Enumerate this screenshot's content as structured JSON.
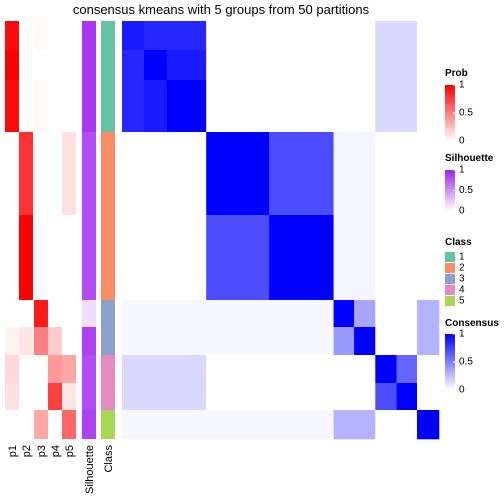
{
  "chart_data": {
    "type": "heatmap",
    "title": "consensus kmeans with 5 groups from 50 partitions",
    "annotations": [
      {
        "name": "p1",
        "scale": "prob",
        "values": [
          0.95,
          1,
          0.97,
          0,
          0,
          0,
          0.05,
          0.15,
          0.12,
          0
        ]
      },
      {
        "name": "p2",
        "scale": "prob",
        "values": [
          0,
          0,
          0,
          0.8,
          1,
          0,
          0.1,
          0,
          0,
          0
        ]
      },
      {
        "name": "p3",
        "scale": "prob",
        "values": [
          0.02,
          0,
          0.02,
          0,
          0,
          0.9,
          0.5,
          0,
          0,
          0.35
        ]
      },
      {
        "name": "p4",
        "scale": "prob",
        "values": [
          0,
          0,
          0,
          0,
          0,
          0,
          0.2,
          0.4,
          0.75,
          0
        ]
      },
      {
        "name": "p5",
        "scale": "prob",
        "values": [
          0,
          0,
          0,
          0.12,
          0,
          0,
          0,
          0.35,
          0.1,
          0.6
        ]
      },
      {
        "name": "Silhouette",
        "scale": "silhouette",
        "values": [
          0.9,
          0.9,
          0.9,
          0.8,
          0.8,
          0.15,
          0.85,
          0.8,
          0.8,
          0.85
        ]
      },
      {
        "name": "Class",
        "scale": "class",
        "values": [
          1,
          1,
          1,
          2,
          2,
          3,
          3,
          4,
          4,
          5
        ]
      }
    ],
    "values": [
      [
        0.9,
        0.85,
        0.85,
        0,
        0,
        0,
        0,
        0.15,
        0.15,
        0
      ],
      [
        0.85,
        1,
        0.9,
        0,
        0,
        0,
        0,
        0.15,
        0.15,
        0
      ],
      [
        0.85,
        0.9,
        1,
        0,
        0,
        0,
        0,
        0.15,
        0.15,
        0
      ],
      [
        0,
        0,
        0,
        1,
        0.7,
        0.04,
        0.04,
        0,
        0,
        0
      ],
      [
        0,
        0,
        0,
        0.7,
        1,
        0.04,
        0.04,
        0,
        0,
        0
      ],
      [
        0.03,
        0.03,
        0.03,
        0.03,
        0.03,
        1,
        0.35,
        0,
        0,
        0.3
      ],
      [
        0.03,
        0.03,
        0.03,
        0.03,
        0.03,
        0.4,
        1,
        0,
        0,
        0.3
      ],
      [
        0.15,
        0.15,
        0.15,
        0,
        0,
        0,
        0,
        1,
        0.6,
        0
      ],
      [
        0.15,
        0.15,
        0.15,
        0,
        0,
        0,
        0,
        0.7,
        1,
        0
      ],
      [
        0.03,
        0.03,
        0.03,
        0.03,
        0.03,
        0.3,
        0.3,
        0,
        0,
        1
      ]
    ],
    "prob_legend": {
      "title": "Prob",
      "ticks": [
        0,
        0.5,
        1
      ],
      "colors": [
        "#ffffff",
        "#ff0000"
      ]
    },
    "silhouette_legend": {
      "title": "Silhouette",
      "ticks": [
        0,
        0.5,
        1
      ],
      "colors": [
        "#ffffff",
        "#a020f0"
      ]
    },
    "class_legend": {
      "title": "Class",
      "categories": [
        "1",
        "2",
        "3",
        "4",
        "5"
      ],
      "colors": [
        "#66c2a5",
        "#fc8d62",
        "#8da0cb",
        "#e78ac3",
        "#a6d854"
      ]
    },
    "consensus_legend": {
      "title": "Consensus",
      "ticks": [
        0,
        0.5,
        1
      ],
      "colors": [
        "#ffffff",
        "#0000ff"
      ]
    }
  }
}
